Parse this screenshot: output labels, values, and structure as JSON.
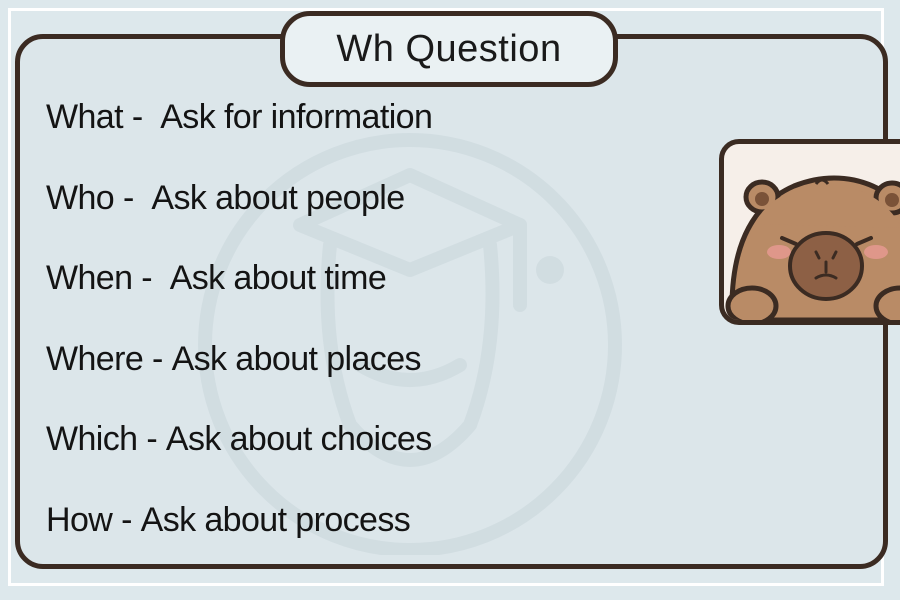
{
  "title": "Wh Question",
  "questions": [
    {
      "word": "What",
      "sep": " -  ",
      "meaning": "Ask for information"
    },
    {
      "word": "Who",
      "sep": " -  ",
      "meaning": "Ask about people"
    },
    {
      "word": "When",
      "sep": " -  ",
      "meaning": "Ask about time"
    },
    {
      "word": "Where",
      "sep": " - ",
      "meaning": "Ask about places"
    },
    {
      "word": "Which",
      "sep": " - ",
      "meaning": "Ask about choices"
    },
    {
      "word": "How",
      "sep": " - ",
      "meaning": "Ask about process"
    }
  ],
  "colors": {
    "background": "#dde8ec",
    "border": "#3b2b22",
    "text": "#141414",
    "capybara": "#b98b66"
  },
  "icons": {
    "watermark": "graduation-cap-animal-watermark",
    "sticker": "capybara-sticker"
  }
}
